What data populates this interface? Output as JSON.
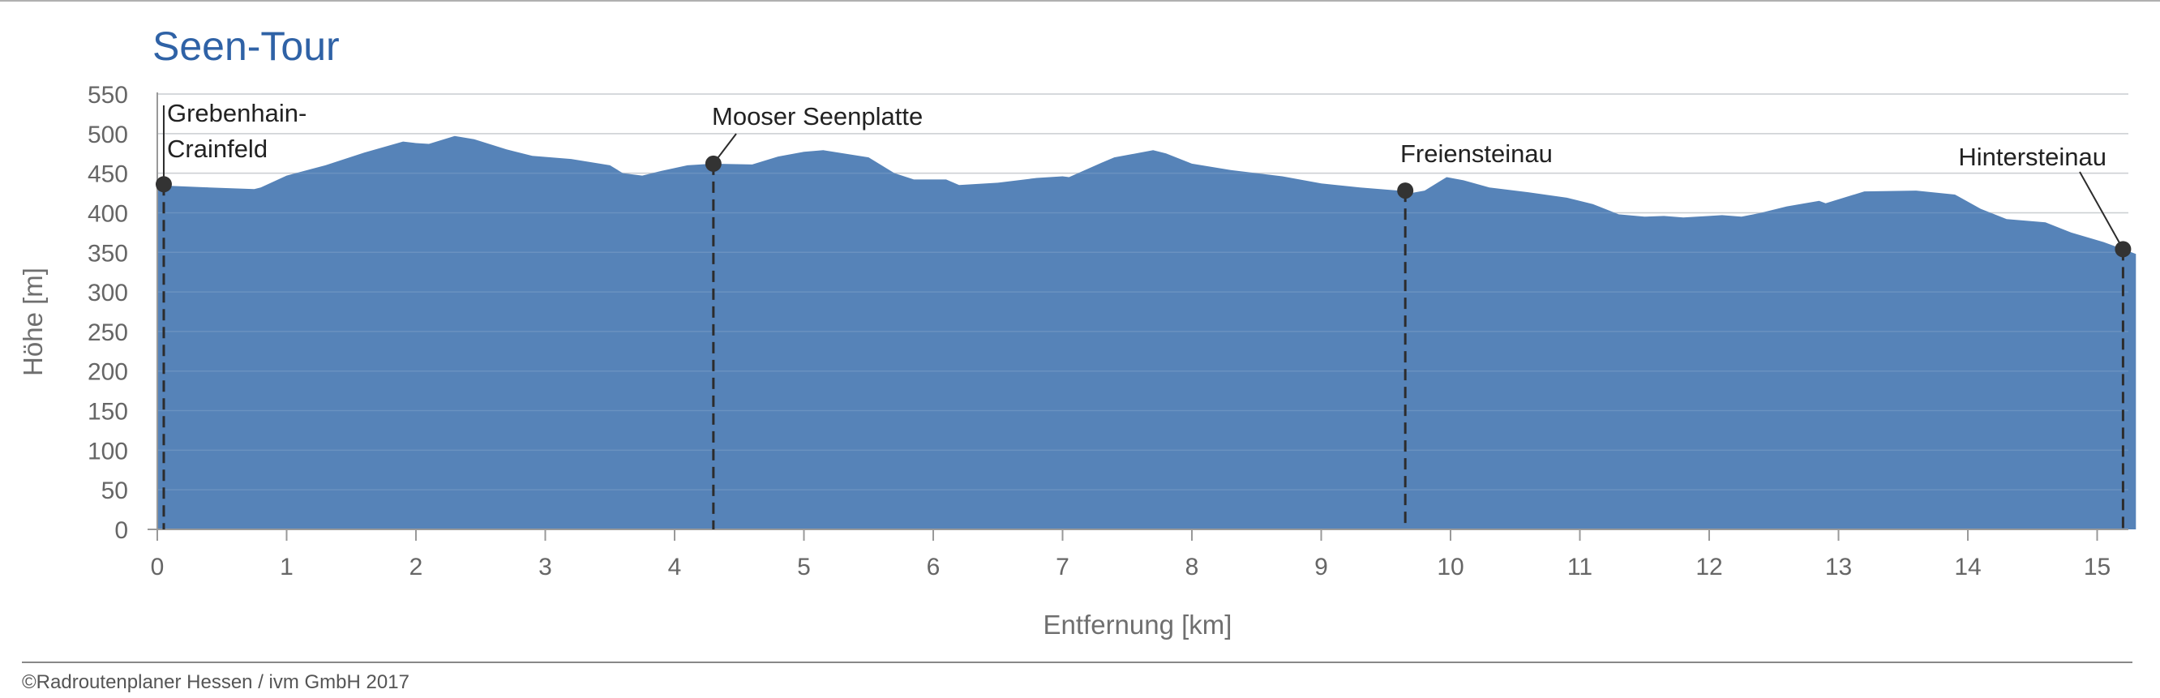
{
  "copyright": "©Radroutenplaner Hessen / ivm GmbH 2017",
  "colors": {
    "area": "#5683b8",
    "title": "#2f62a6",
    "grid": "#c4c8cc",
    "axis": "#999999",
    "marker": "#333333"
  },
  "chart_data": {
    "type": "area",
    "title": "Seen-Tour",
    "xlabel": "Entfernung [km]",
    "ylabel": "Höhe [m]",
    "xlim": [
      0,
      15.3
    ],
    "ylim": [
      0,
      550
    ],
    "grid": true,
    "x_ticks": [
      "0",
      "1",
      "2",
      "3",
      "4",
      "5",
      "6",
      "7",
      "8",
      "9",
      "10",
      "11",
      "12",
      "13",
      "14",
      "15"
    ],
    "y_ticks": [
      "0",
      "50",
      "100",
      "150",
      "200",
      "250",
      "300",
      "350",
      "400",
      "450",
      "500",
      "550"
    ],
    "x": [
      0,
      0.05,
      0.1,
      0.4,
      0.75,
      0.8,
      1.0,
      1.3,
      1.6,
      1.9,
      2.0,
      2.1,
      2.3,
      2.45,
      2.7,
      2.9,
      3.2,
      3.5,
      3.6,
      3.75,
      3.9,
      4.1,
      4.3,
      4.6,
      4.8,
      5.0,
      5.15,
      5.5,
      5.7,
      5.85,
      6.1,
      6.2,
      6.5,
      6.8,
      7.0,
      7.05,
      7.3,
      7.4,
      7.6,
      7.7,
      7.8,
      8.0,
      8.3,
      8.7,
      9.0,
      9.3,
      9.6,
      9.7,
      9.8,
      9.97,
      10.1,
      10.3,
      10.6,
      10.9,
      11.1,
      11.3,
      11.5,
      11.65,
      11.8,
      12.0,
      12.1,
      12.25,
      12.4,
      12.6,
      12.85,
      12.9,
      13.2,
      13.6,
      13.9,
      14.1,
      14.3,
      14.45,
      14.6,
      14.8,
      15.05,
      15.2,
      15.3
    ],
    "values": [
      436,
      436,
      434,
      432,
      430,
      432,
      447,
      460,
      476,
      490,
      488,
      487,
      497,
      493,
      480,
      472,
      468,
      460,
      450,
      447,
      453,
      460,
      462,
      461,
      471,
      477,
      479,
      470,
      450,
      442,
      442,
      435,
      438,
      444,
      446,
      445,
      463,
      470,
      476,
      479,
      475,
      462,
      454,
      446,
      437,
      432,
      428,
      425,
      428,
      445,
      441,
      432,
      426,
      419,
      411,
      398,
      395,
      396,
      394,
      396,
      397,
      395,
      400,
      408,
      415,
      412,
      427,
      428,
      423,
      405,
      392,
      390,
      388,
      375,
      363,
      354,
      348
    ],
    "annotations": [
      {
        "label_lines": [
          "Grebenhain-",
          "Crainfeld"
        ],
        "x": 0.05,
        "y": 436,
        "anchor": "start"
      },
      {
        "label_lines": [
          "Mooser Seenplatte"
        ],
        "x": 4.3,
        "y": 462,
        "anchor": "start"
      },
      {
        "label_lines": [
          "Freiensteinau"
        ],
        "x": 9.65,
        "y": 428,
        "anchor": "start"
      },
      {
        "label_lines": [
          "Hintersteinau"
        ],
        "x": 15.2,
        "y": 354,
        "anchor": "end"
      }
    ]
  }
}
